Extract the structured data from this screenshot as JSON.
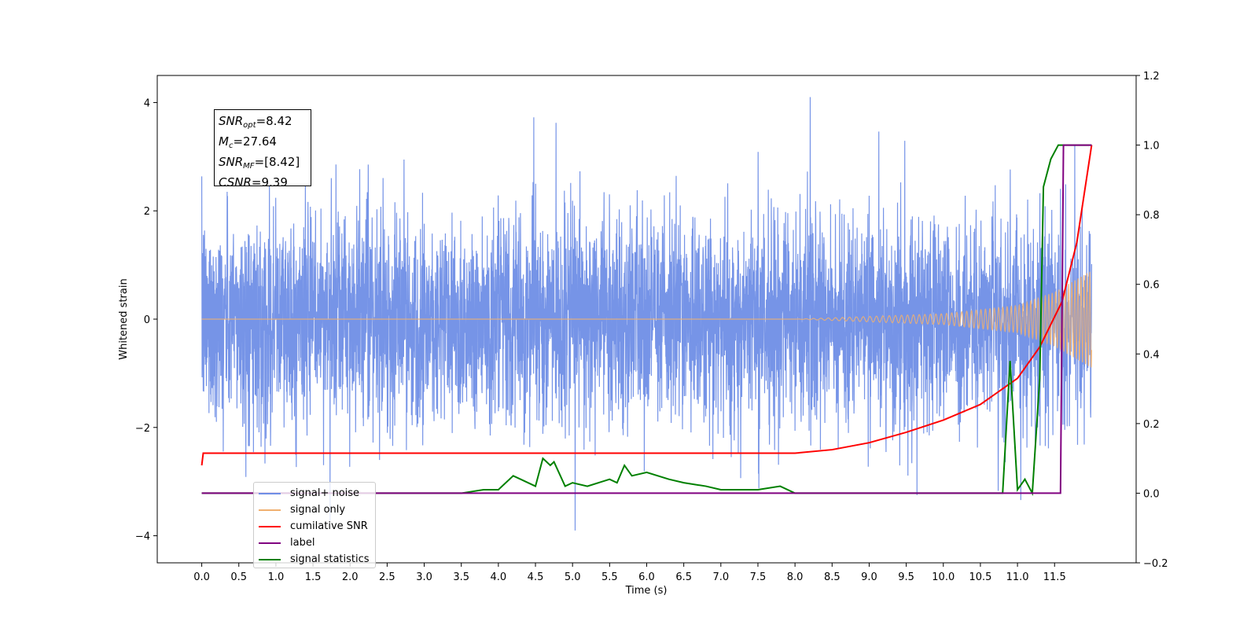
{
  "chart_data": {
    "type": "line",
    "xlabel": "Time (s)",
    "ylabel": "Whitened strain",
    "xlim": [
      -0.6,
      12.6
    ],
    "ylim": [
      -4.5,
      4.5
    ],
    "y2lim": [
      -0.2,
      1.2
    ],
    "x_ticks": [
      "0.0",
      "0.5",
      "1.0",
      "1.5",
      "2.0",
      "2.5",
      "3.0",
      "3.5",
      "4.0",
      "4.5",
      "5.0",
      "5.5",
      "6.0",
      "6.5",
      "7.0",
      "7.5",
      "8.0",
      "8.5",
      "9.0",
      "9.5",
      "10.0",
      "10.5",
      "11.0",
      "11.5"
    ],
    "y_ticks": [
      "4",
      "2",
      "0",
      "−2",
      "−4"
    ],
    "y2_ticks": [
      "1.2",
      "1.0",
      "0.8",
      "0.6",
      "0.4",
      "0.2",
      "0.0",
      "−0.2"
    ],
    "annotation": {
      "snr_opt": "=8.42",
      "mc": "=27.64",
      "snr_mf": "=[8.42]",
      "csnr": "=9.39"
    },
    "legend_location": "lower left",
    "series": [
      {
        "name": "signal+ noise",
        "color": "#6f8ee6",
        "axis": "left",
        "note": "noise band approx +-2.3, peaks to about +-4, x from 0.0 to 12.0"
      },
      {
        "name": "signal only",
        "color": "#f0b070",
        "axis": "left",
        "envelope": {
          "x": [
            0.0,
            8.0,
            9.0,
            10.0,
            11.0,
            11.5,
            12.0
          ],
          "amp": [
            0.0,
            0.0,
            0.05,
            0.1,
            0.25,
            0.5,
            0.9
          ]
        }
      },
      {
        "name": "cumilative SNR",
        "color": "#ff0000",
        "axis": "right",
        "x": [
          0.0,
          0.02,
          8.0,
          8.5,
          9.0,
          9.5,
          10.0,
          10.5,
          11.0,
          11.3,
          11.6,
          11.8,
          12.0
        ],
        "y": [
          0.08,
          0.115,
          0.115,
          0.125,
          0.145,
          0.175,
          0.21,
          0.255,
          0.33,
          0.42,
          0.55,
          0.72,
          1.0
        ]
      },
      {
        "name": "label",
        "color": "#800080",
        "axis": "right",
        "x": [
          0.0,
          11.58,
          11.62,
          12.0
        ],
        "y": [
          0.0,
          0.0,
          1.0,
          1.0
        ]
      },
      {
        "name": "signal statistics",
        "color": "#008000",
        "axis": "right",
        "x": [
          0.0,
          3.5,
          3.8,
          4.0,
          4.2,
          4.3,
          4.5,
          4.6,
          4.7,
          4.75,
          4.9,
          5.0,
          5.2,
          5.5,
          5.6,
          5.7,
          5.8,
          6.0,
          6.3,
          6.5,
          6.8,
          7.0,
          7.5,
          7.8,
          8.0,
          10.8,
          10.9,
          11.0,
          11.1,
          11.2,
          11.3,
          11.35,
          11.45,
          11.55,
          11.7,
          12.0
        ],
        "y": [
          0.0,
          0.0,
          0.01,
          0.01,
          0.05,
          0.04,
          0.02,
          0.1,
          0.08,
          0.09,
          0.02,
          0.03,
          0.02,
          0.04,
          0.03,
          0.08,
          0.05,
          0.06,
          0.04,
          0.03,
          0.02,
          0.01,
          0.01,
          0.02,
          0.0,
          0.0,
          0.38,
          0.01,
          0.04,
          0.0,
          0.33,
          0.88,
          0.96,
          1.0,
          1.0,
          1.0
        ]
      }
    ]
  }
}
